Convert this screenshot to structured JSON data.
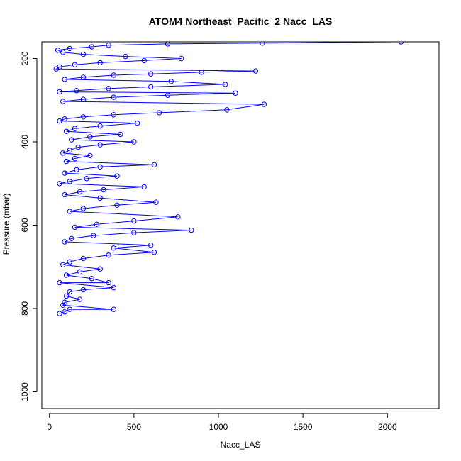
{
  "chart_data": {
    "type": "scatter",
    "title": "ATOM4 Northeast_Pacific_2 Nacc_LAS",
    "xlabel": "Nacc_LAS",
    "ylabel": "Pressure (mbar)",
    "xlim": [
      -45,
      2305
    ],
    "ylim": [
      1040,
      160
    ],
    "y_reversed": true,
    "x_ticks": [
      0,
      500,
      1000,
      1500,
      2000
    ],
    "y_ticks": [
      200,
      400,
      600,
      800,
      1000
    ],
    "grid": false,
    "legend": "none",
    "series_color": "#0000ff",
    "marker": "open-circle",
    "connected_with_lines": true,
    "profile": [
      [
        2080,
        160
      ],
      [
        1260,
        163
      ],
      [
        700,
        165
      ],
      [
        350,
        168
      ],
      [
        250,
        172
      ],
      [
        120,
        176
      ],
      [
        50,
        180
      ],
      [
        80,
        185
      ],
      [
        200,
        190
      ],
      [
        450,
        195
      ],
      [
        780,
        200
      ],
      [
        560,
        205
      ],
      [
        300,
        210
      ],
      [
        150,
        215
      ],
      [
        60,
        220
      ],
      [
        40,
        225
      ],
      [
        1220,
        230
      ],
      [
        900,
        233
      ],
      [
        600,
        237
      ],
      [
        380,
        240
      ],
      [
        200,
        245
      ],
      [
        90,
        250
      ],
      [
        720,
        255
      ],
      [
        1040,
        262
      ],
      [
        600,
        268
      ],
      [
        350,
        272
      ],
      [
        160,
        277
      ],
      [
        60,
        280
      ],
      [
        1100,
        283
      ],
      [
        700,
        288
      ],
      [
        380,
        293
      ],
      [
        200,
        298
      ],
      [
        80,
        303
      ],
      [
        1270,
        310
      ],
      [
        1050,
        323
      ],
      [
        650,
        330
      ],
      [
        380,
        335
      ],
      [
        200,
        340
      ],
      [
        90,
        345
      ],
      [
        60,
        350
      ],
      [
        520,
        355
      ],
      [
        300,
        362
      ],
      [
        150,
        368
      ],
      [
        100,
        375
      ],
      [
        420,
        382
      ],
      [
        240,
        388
      ],
      [
        130,
        395
      ],
      [
        500,
        400
      ],
      [
        300,
        407
      ],
      [
        170,
        413
      ],
      [
        120,
        420
      ],
      [
        80,
        427
      ],
      [
        240,
        433
      ],
      [
        150,
        440
      ],
      [
        100,
        447
      ],
      [
        620,
        455
      ],
      [
        300,
        460
      ],
      [
        160,
        467
      ],
      [
        90,
        475
      ],
      [
        400,
        482
      ],
      [
        220,
        488
      ],
      [
        120,
        495
      ],
      [
        60,
        500
      ],
      [
        560,
        508
      ],
      [
        320,
        515
      ],
      [
        180,
        520
      ],
      [
        90,
        527
      ],
      [
        300,
        535
      ],
      [
        630,
        545
      ],
      [
        400,
        552
      ],
      [
        200,
        560
      ],
      [
        120,
        567
      ],
      [
        760,
        580
      ],
      [
        500,
        590
      ],
      [
        280,
        598
      ],
      [
        150,
        605
      ],
      [
        840,
        612
      ],
      [
        500,
        618
      ],
      [
        260,
        625
      ],
      [
        130,
        632
      ],
      [
        90,
        640
      ],
      [
        600,
        648
      ],
      [
        380,
        655
      ],
      [
        620,
        665
      ],
      [
        350,
        672
      ],
      [
        200,
        680
      ],
      [
        120,
        688
      ],
      [
        80,
        695
      ],
      [
        300,
        705
      ],
      [
        180,
        712
      ],
      [
        100,
        720
      ],
      [
        250,
        728
      ],
      [
        350,
        738
      ],
      [
        60,
        738
      ],
      [
        380,
        750
      ],
      [
        200,
        755
      ],
      [
        120,
        760
      ],
      [
        100,
        770
      ],
      [
        180,
        778
      ],
      [
        90,
        785
      ],
      [
        80,
        792
      ],
      [
        380,
        802
      ],
      [
        120,
        802
      ],
      [
        90,
        808
      ],
      [
        60,
        812
      ]
    ]
  }
}
